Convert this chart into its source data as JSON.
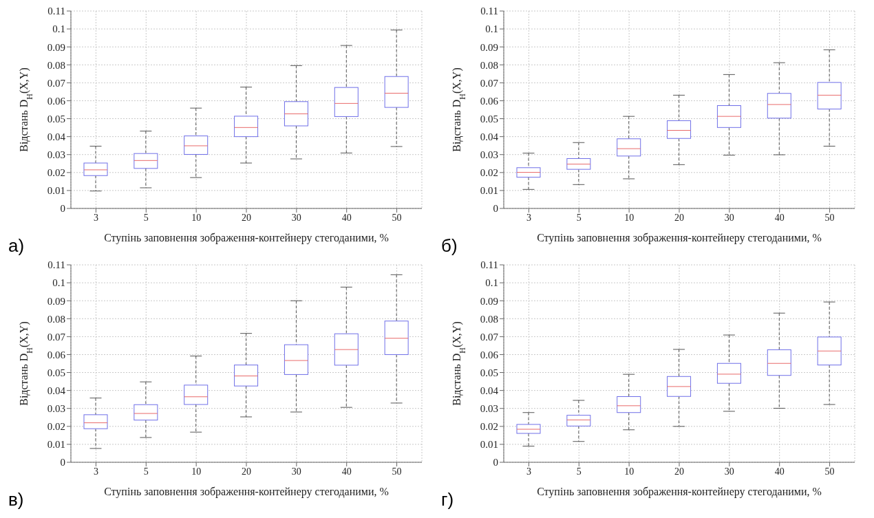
{
  "chart_data": [
    {
      "type": "box",
      "annotations": [
        "а)"
      ],
      "xlabel": "Ступінь заповнення зображення-контейнеру стегоданими, %",
      "ylabel": "Відстань D$_{H}$(X,Y)",
      "categories": [
        "3",
        "5",
        "10",
        "20",
        "30",
        "40",
        "50"
      ],
      "ylim": [
        0,
        0.11
      ],
      "yticks": [
        0,
        0.01,
        0.02,
        0.03,
        0.04,
        0.05,
        0.06,
        0.07,
        0.08,
        0.09,
        0.1,
        0.11
      ],
      "grid": true,
      "series": [
        {
          "color": "#6f6fe8",
          "boxes": [
            {
              "low": 0.0097,
              "q1": 0.0183,
              "median": 0.0215,
              "q3": 0.0253,
              "high": 0.0347
            },
            {
              "low": 0.0115,
              "q1": 0.0223,
              "median": 0.0267,
              "q3": 0.0306,
              "high": 0.0431
            },
            {
              "low": 0.0172,
              "q1": 0.0301,
              "median": 0.0349,
              "q3": 0.0404,
              "high": 0.0559
            },
            {
              "low": 0.0253,
              "q1": 0.04,
              "median": 0.0451,
              "q3": 0.0514,
              "high": 0.0676
            },
            {
              "low": 0.0276,
              "q1": 0.046,
              "median": 0.0527,
              "q3": 0.0595,
              "high": 0.0796
            },
            {
              "low": 0.0309,
              "q1": 0.0512,
              "median": 0.0585,
              "q3": 0.0674,
              "high": 0.0908
            },
            {
              "low": 0.0345,
              "q1": 0.0563,
              "median": 0.0642,
              "q3": 0.0735,
              "high": 0.0994
            }
          ]
        }
      ]
    },
    {
      "type": "box",
      "annotations": [
        "б)"
      ],
      "xlabel": "Ступінь заповнення зображення-контейнеру стегоданими, %",
      "ylabel": "Відстань D$_{H}$(X,Y)",
      "categories": [
        "3",
        "5",
        "10",
        "20",
        "30",
        "40",
        "50"
      ],
      "ylim": [
        0,
        0.11
      ],
      "yticks": [
        0,
        0.01,
        0.02,
        0.03,
        0.04,
        0.05,
        0.06,
        0.07,
        0.08,
        0.09,
        0.1,
        0.11
      ],
      "grid": true,
      "series": [
        {
          "color": "#6f6fe8",
          "boxes": [
            {
              "low": 0.0106,
              "q1": 0.0174,
              "median": 0.0201,
              "q3": 0.0227,
              "high": 0.0308
            },
            {
              "low": 0.0133,
              "q1": 0.0218,
              "median": 0.0247,
              "q3": 0.0278,
              "high": 0.0367
            },
            {
              "low": 0.0165,
              "q1": 0.0292,
              "median": 0.0333,
              "q3": 0.0388,
              "high": 0.0513
            },
            {
              "low": 0.0244,
              "q1": 0.039,
              "median": 0.0435,
              "q3": 0.0489,
              "high": 0.0631
            },
            {
              "low": 0.0297,
              "q1": 0.0451,
              "median": 0.0513,
              "q3": 0.0573,
              "high": 0.0746
            },
            {
              "low": 0.0299,
              "q1": 0.0503,
              "median": 0.0579,
              "q3": 0.0641,
              "high": 0.0812
            },
            {
              "low": 0.0347,
              "q1": 0.0554,
              "median": 0.0631,
              "q3": 0.0702,
              "high": 0.0884
            }
          ]
        }
      ]
    },
    {
      "type": "box",
      "annotations": [
        "в)"
      ],
      "xlabel": "Ступінь заповнення зображення-контейнеру стегоданими, %",
      "ylabel": "Відстань D$_{H}$(X,Y)",
      "categories": [
        "3",
        "5",
        "10",
        "20",
        "30",
        "40",
        "50"
      ],
      "ylim": [
        0,
        0.11
      ],
      "yticks": [
        0,
        0.01,
        0.02,
        0.03,
        0.04,
        0.05,
        0.06,
        0.07,
        0.08,
        0.09,
        0.1,
        0.11
      ],
      "grid": true,
      "series": [
        {
          "color": "#6f6fe8",
          "boxes": [
            {
              "low": 0.0077,
              "q1": 0.0187,
              "median": 0.022,
              "q3": 0.0265,
              "high": 0.0358
            },
            {
              "low": 0.0138,
              "q1": 0.0235,
              "median": 0.0272,
              "q3": 0.0321,
              "high": 0.0448
            },
            {
              "low": 0.0168,
              "q1": 0.0322,
              "median": 0.0365,
              "q3": 0.043,
              "high": 0.0592
            },
            {
              "low": 0.0253,
              "q1": 0.0425,
              "median": 0.0481,
              "q3": 0.0542,
              "high": 0.0718
            },
            {
              "low": 0.028,
              "q1": 0.0489,
              "median": 0.0567,
              "q3": 0.0655,
              "high": 0.09
            },
            {
              "low": 0.0306,
              "q1": 0.0541,
              "median": 0.0628,
              "q3": 0.0716,
              "high": 0.0976
            },
            {
              "low": 0.033,
              "q1": 0.06,
              "median": 0.0691,
              "q3": 0.0787,
              "high": 0.1045
            }
          ]
        }
      ]
    },
    {
      "type": "box",
      "annotations": [
        "г)"
      ],
      "xlabel": "Ступінь заповнення зображення-контейнеру стегоданими, %",
      "ylabel": "Відстань D$_{H}$(X,Y)",
      "categories": [
        "3",
        "5",
        "10",
        "20",
        "30",
        "40",
        "50"
      ],
      "ylim": [
        0,
        0.11
      ],
      "yticks": [
        0,
        0.01,
        0.02,
        0.03,
        0.04,
        0.05,
        0.06,
        0.07,
        0.08,
        0.09,
        0.1,
        0.11
      ],
      "grid": true,
      "series": [
        {
          "color": "#6f6fe8",
          "boxes": [
            {
              "low": 0.009,
              "q1": 0.0161,
              "median": 0.0184,
              "q3": 0.0211,
              "high": 0.0277
            },
            {
              "low": 0.0116,
              "q1": 0.0202,
              "median": 0.0236,
              "q3": 0.0262,
              "high": 0.0345
            },
            {
              "low": 0.0181,
              "q1": 0.0277,
              "median": 0.0315,
              "q3": 0.0366,
              "high": 0.049
            },
            {
              "low": 0.02,
              "q1": 0.0367,
              "median": 0.0422,
              "q3": 0.0478,
              "high": 0.0629
            },
            {
              "low": 0.0284,
              "q1": 0.044,
              "median": 0.0491,
              "q3": 0.0551,
              "high": 0.0709
            },
            {
              "low": 0.0301,
              "q1": 0.0484,
              "median": 0.0551,
              "q3": 0.0627,
              "high": 0.0831
            },
            {
              "low": 0.0322,
              "q1": 0.0542,
              "median": 0.062,
              "q3": 0.0698,
              "high": 0.0893
            }
          ]
        }
      ]
    }
  ]
}
